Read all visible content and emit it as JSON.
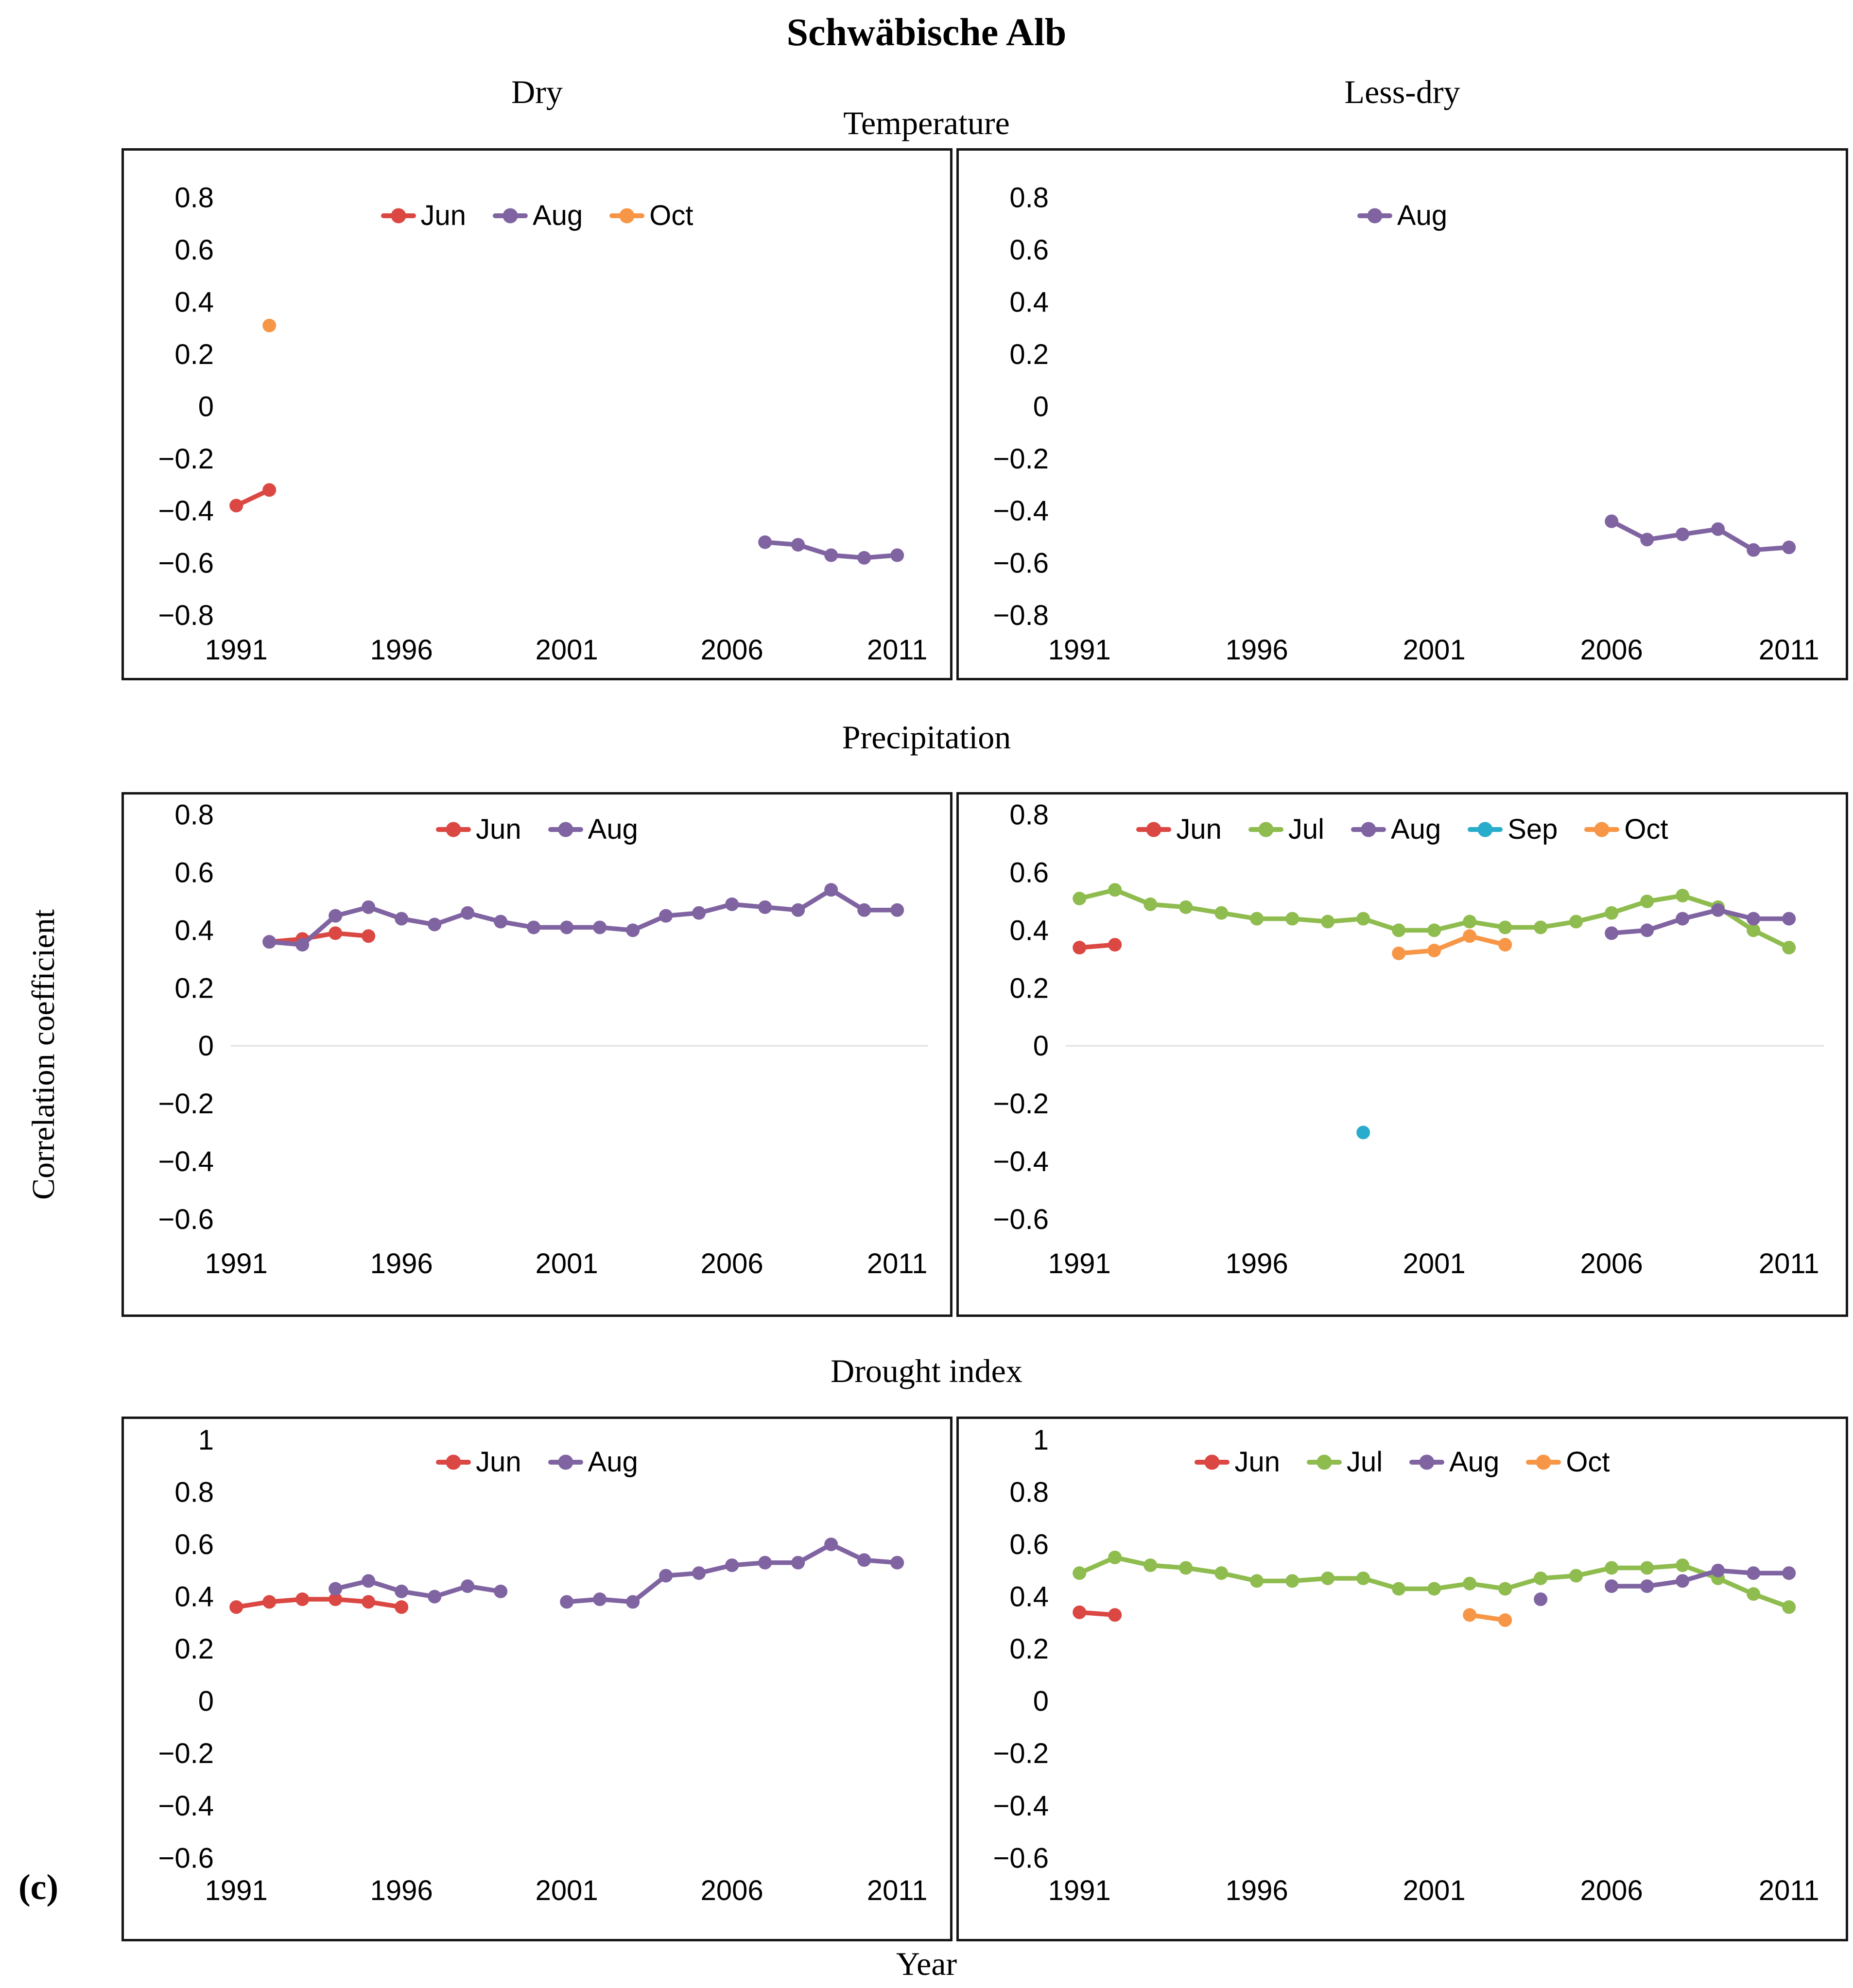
{
  "header": {
    "title": "Schwäbische Alb",
    "left_column": "Dry",
    "right_column": "Less-dry"
  },
  "sections": {
    "row1": "Temperature",
    "row2": "Precipitation",
    "row3": "Drought index"
  },
  "axes": {
    "ylabel": "Correlation coefficient",
    "xlabel": "Year"
  },
  "panel_label": "(c)",
  "colors": {
    "Jun": "#DB4742",
    "Jul": "#8FBC4F",
    "Aug": "#8064A2",
    "Sep": "#29ACCC",
    "Oct": "#F79646"
  },
  "axis": {
    "xticks": [
      1991,
      1996,
      2001,
      2006,
      2011
    ],
    "xlim": [
      1987.6,
      2012.6
    ]
  },
  "chart_data": [
    {
      "id": "temperature-dry",
      "type": "line",
      "row": 1,
      "column": "Dry",
      "title": "Temperature",
      "ylim": [
        -1.04,
        0.98
      ],
      "yticks": [
        0.8,
        0.6,
        0.4,
        0.2,
        0,
        -0.2,
        -0.4,
        -0.6,
        -0.8
      ],
      "zero_gridline": false,
      "legend": [
        "Jun",
        "Aug",
        "Oct"
      ],
      "series": [
        {
          "name": "Jun",
          "points": [
            [
              1991,
              -0.38
            ],
            [
              1992,
              -0.32
            ]
          ]
        },
        {
          "name": "Aug",
          "points": [
            [
              2007,
              -0.52
            ],
            [
              2008,
              -0.53
            ],
            [
              2009,
              -0.57
            ],
            [
              2010,
              -0.58
            ],
            [
              2011,
              -0.57
            ]
          ]
        },
        {
          "name": "Oct",
          "points": [
            [
              1992,
              0.31
            ]
          ]
        }
      ]
    },
    {
      "id": "temperature-lessdry",
      "type": "line",
      "row": 1,
      "column": "Less-dry",
      "title": "Temperature",
      "ylim": [
        -1.04,
        0.98
      ],
      "yticks": [
        0.8,
        0.6,
        0.4,
        0.2,
        0,
        -0.2,
        -0.4,
        -0.6,
        -0.8
      ],
      "zero_gridline": false,
      "legend": [
        "Aug"
      ],
      "series": [
        {
          "name": "Aug",
          "points": [
            [
              2006,
              -0.44
            ],
            [
              2007,
              -0.51
            ],
            [
              2008,
              -0.49
            ],
            [
              2009,
              -0.47
            ],
            [
              2010,
              -0.55
            ],
            [
              2011,
              -0.54
            ]
          ]
        }
      ]
    },
    {
      "id": "precipitation-dry",
      "type": "line",
      "row": 2,
      "column": "Dry",
      "title": "Precipitation",
      "ylim": [
        -0.93,
        0.87
      ],
      "yticks": [
        0.8,
        0.6,
        0.4,
        0.2,
        0,
        -0.2,
        -0.4,
        -0.6
      ],
      "zero_gridline": true,
      "legend": [
        "Jun",
        "Aug"
      ],
      "series": [
        {
          "name": "Jun",
          "points": [
            [
              1992,
              0.36
            ],
            [
              1993,
              0.37
            ],
            [
              1994,
              0.39
            ],
            [
              1995,
              0.38
            ]
          ]
        },
        {
          "name": "Aug",
          "points": [
            [
              1992,
              0.36
            ],
            [
              1993,
              0.35
            ],
            [
              1994,
              0.45
            ],
            [
              1995,
              0.48
            ],
            [
              1996,
              0.44
            ],
            [
              1997,
              0.42
            ],
            [
              1998,
              0.46
            ],
            [
              1999,
              0.43
            ],
            [
              2000,
              0.41
            ],
            [
              2001,
              0.41
            ],
            [
              2002,
              0.41
            ],
            [
              2003,
              0.4
            ],
            [
              2004,
              0.45
            ],
            [
              2005,
              0.46
            ],
            [
              2006,
              0.49
            ],
            [
              2007,
              0.48
            ],
            [
              2008,
              0.47
            ],
            [
              2009,
              0.54
            ],
            [
              2010,
              0.47
            ],
            [
              2011,
              0.47
            ]
          ]
        }
      ]
    },
    {
      "id": "precipitation-lessdry",
      "type": "line",
      "row": 2,
      "column": "Less-dry",
      "title": "Precipitation",
      "ylim": [
        -0.93,
        0.87
      ],
      "yticks": [
        0.8,
        0.6,
        0.4,
        0.2,
        0,
        -0.2,
        -0.4,
        -0.6
      ],
      "zero_gridline": true,
      "legend": [
        "Jun",
        "Jul",
        "Aug",
        "Sep",
        "Oct"
      ],
      "series": [
        {
          "name": "Jun",
          "points": [
            [
              1991,
              0.34
            ],
            [
              1992,
              0.35
            ]
          ]
        },
        {
          "name": "Jul",
          "points": [
            [
              1991,
              0.51
            ],
            [
              1992,
              0.54
            ],
            [
              1993,
              0.49
            ],
            [
              1994,
              0.48
            ],
            [
              1995,
              0.46
            ],
            [
              1996,
              0.44
            ],
            [
              1997,
              0.44
            ],
            [
              1998,
              0.43
            ],
            [
              1999,
              0.44
            ],
            [
              2000,
              0.4
            ],
            [
              2001,
              0.4
            ],
            [
              2002,
              0.43
            ],
            [
              2003,
              0.41
            ],
            [
              2004,
              0.41
            ],
            [
              2005,
              0.43
            ],
            [
              2006,
              0.46
            ],
            [
              2007,
              0.5
            ],
            [
              2008,
              0.52
            ],
            [
              2009,
              0.48
            ],
            [
              2010,
              0.4
            ],
            [
              2011,
              0.34
            ]
          ]
        },
        {
          "name": "Aug",
          "points": [
            [
              2006,
              0.39
            ],
            [
              2007,
              0.4
            ],
            [
              2008,
              0.44
            ],
            [
              2009,
              0.47
            ],
            [
              2010,
              0.44
            ],
            [
              2011,
              0.44
            ]
          ]
        },
        {
          "name": "Sep",
          "points": [
            [
              1999,
              -0.3
            ]
          ]
        },
        {
          "name": "Oct",
          "points": [
            [
              2000,
              0.32
            ],
            [
              2001,
              0.33
            ],
            [
              2002,
              0.38
            ],
            [
              2003,
              0.35
            ]
          ]
        }
      ]
    },
    {
      "id": "drought-dry",
      "type": "line",
      "row": 3,
      "column": "Dry",
      "title": "Drought index",
      "ylim": [
        -0.91,
        1.08
      ],
      "yticks": [
        1,
        0.8,
        0.6,
        0.4,
        0.2,
        0,
        -0.2,
        -0.4,
        -0.6
      ],
      "zero_gridline": false,
      "legend": [
        "Jun",
        "Aug"
      ],
      "series": [
        {
          "name": "Jun",
          "points": [
            [
              1991,
              0.36
            ],
            [
              1992,
              0.38
            ],
            [
              1993,
              0.39
            ],
            [
              1994,
              0.39
            ],
            [
              1995,
              0.38
            ],
            [
              1996,
              0.36
            ]
          ]
        },
        {
          "name": "Aug",
          "points": [
            [
              1994,
              0.43
            ],
            [
              1995,
              0.46
            ],
            [
              1996,
              0.42
            ],
            [
              1997,
              0.4
            ],
            [
              1998,
              0.44
            ],
            [
              1999,
              0.42
            ],
            [
              2000,
              null
            ],
            [
              2001,
              0.38
            ],
            [
              2002,
              0.39
            ],
            [
              2003,
              0.38
            ],
            [
              2004,
              0.48
            ],
            [
              2005,
              0.49
            ],
            [
              2006,
              0.52
            ],
            [
              2007,
              0.53
            ],
            [
              2008,
              0.53
            ],
            [
              2009,
              0.6
            ],
            [
              2010,
              0.54
            ],
            [
              2011,
              0.53
            ]
          ]
        }
      ]
    },
    {
      "id": "drought-lessdry",
      "type": "line",
      "row": 3,
      "column": "Less-dry",
      "title": "Drought index",
      "ylim": [
        -0.91,
        1.08
      ],
      "yticks": [
        1,
        0.8,
        0.6,
        0.4,
        0.2,
        0,
        -0.2,
        -0.4,
        -0.6
      ],
      "zero_gridline": false,
      "legend": [
        "Jun",
        "Jul",
        "Aug",
        "Oct"
      ],
      "series": [
        {
          "name": "Jun",
          "points": [
            [
              1991,
              0.34
            ],
            [
              1992,
              0.33
            ]
          ]
        },
        {
          "name": "Jul",
          "points": [
            [
              1991,
              0.49
            ],
            [
              1992,
              0.55
            ],
            [
              1993,
              0.52
            ],
            [
              1994,
              0.51
            ],
            [
              1995,
              0.49
            ],
            [
              1996,
              0.46
            ],
            [
              1997,
              0.46
            ],
            [
              1998,
              0.47
            ],
            [
              1999,
              0.47
            ],
            [
              2000,
              0.43
            ],
            [
              2001,
              0.43
            ],
            [
              2002,
              0.45
            ],
            [
              2003,
              0.43
            ],
            [
              2004,
              0.47
            ],
            [
              2005,
              0.48
            ],
            [
              2006,
              0.51
            ],
            [
              2007,
              0.51
            ],
            [
              2008,
              0.52
            ],
            [
              2009,
              0.47
            ],
            [
              2010,
              0.41
            ],
            [
              2011,
              0.36
            ]
          ]
        },
        {
          "name": "Aug",
          "points": [
            [
              2004,
              0.39
            ],
            [
              2005,
              null
            ],
            [
              2006,
              0.44
            ],
            [
              2007,
              0.44
            ],
            [
              2008,
              0.46
            ],
            [
              2009,
              0.5
            ],
            [
              2010,
              0.49
            ],
            [
              2011,
              0.49
            ]
          ]
        },
        {
          "name": "Oct",
          "points": [
            [
              2002,
              0.33
            ],
            [
              2003,
              0.31
            ]
          ]
        }
      ]
    }
  ]
}
